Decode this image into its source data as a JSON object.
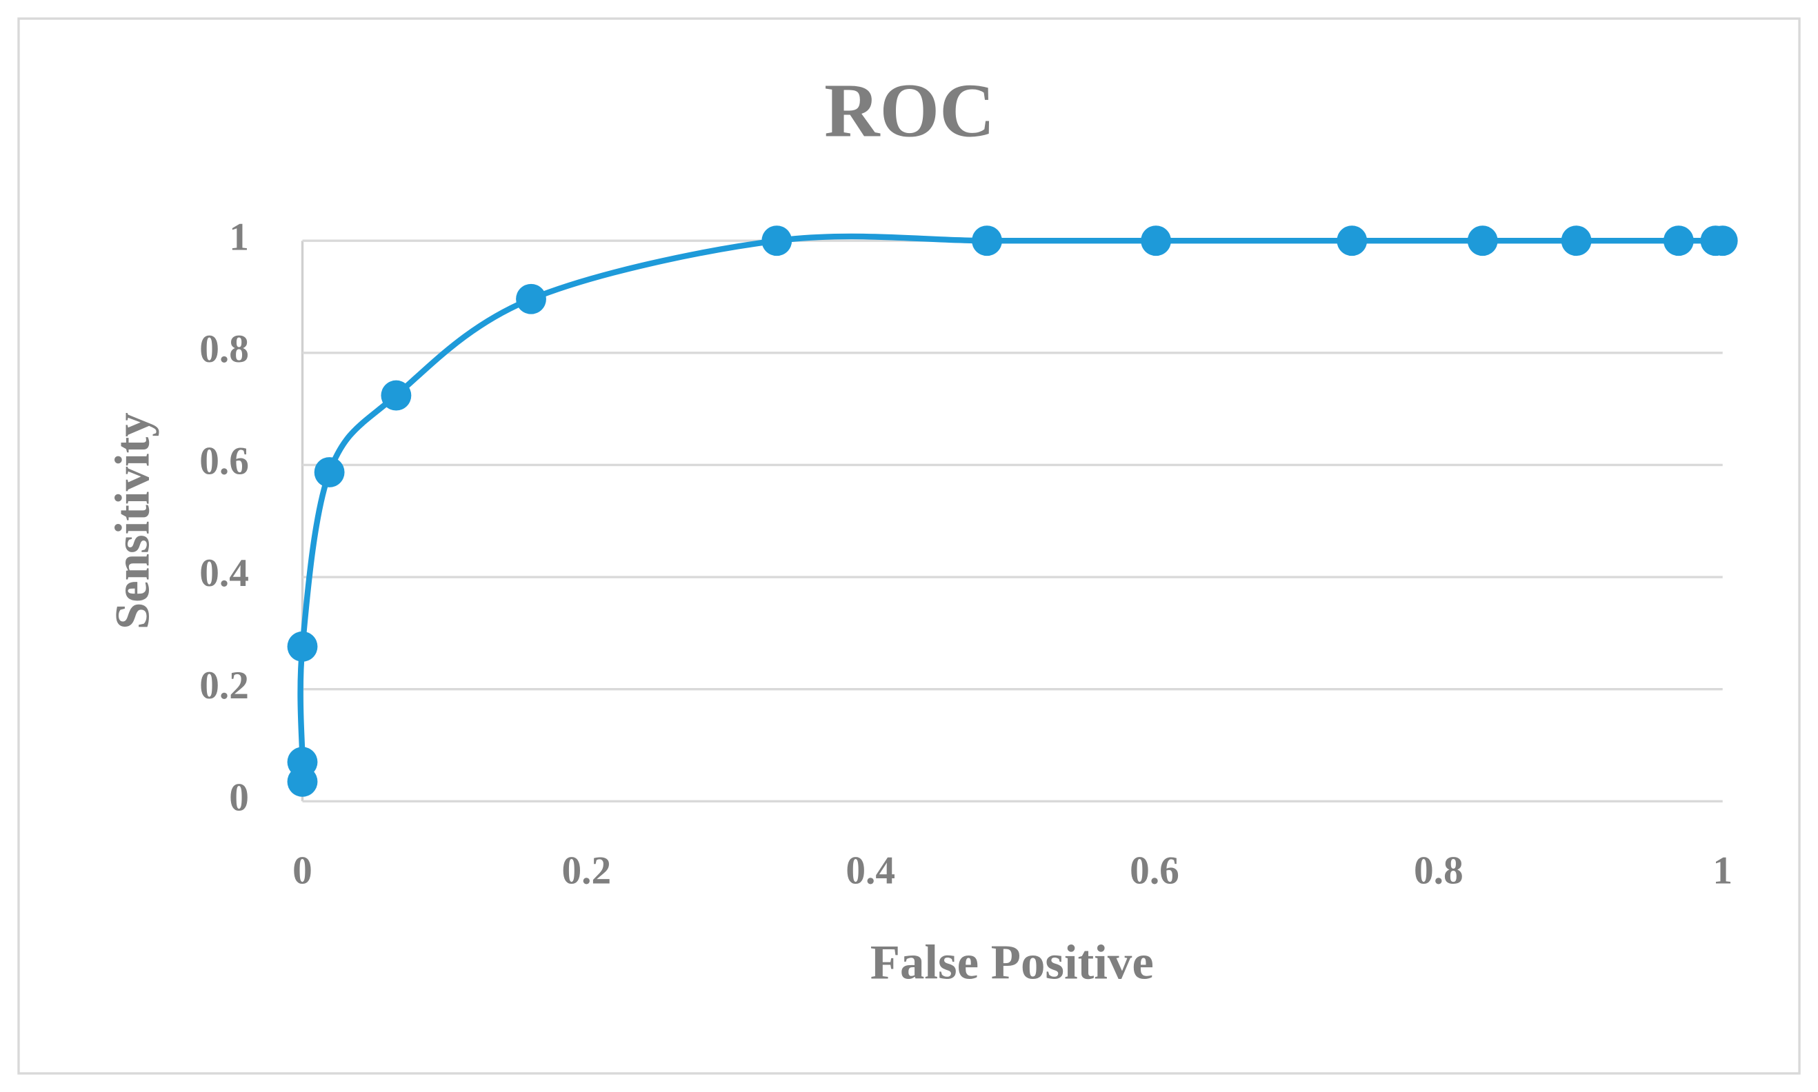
{
  "chart_data": {
    "type": "scatter",
    "title": "ROC",
    "x_label": "False Positive",
    "y_label": "Sensitivity",
    "x": [
      0,
      0,
      0,
      0.019,
      0.066,
      0.161,
      0.334,
      0.482,
      0.601,
      0.739,
      0.831,
      0.897,
      0.969,
      0.995,
      1
    ],
    "values": [
      0.035,
      0.07,
      0.276,
      0.587,
      0.724,
      0.896,
      1,
      1,
      1,
      1,
      1,
      1,
      1,
      1,
      1
    ],
    "color": "#1e9ad9",
    "smooth": true,
    "markers": true,
    "xlim": [
      0,
      1
    ],
    "xticks": [
      0,
      0.2,
      0.4,
      0.6,
      0.8,
      1
    ],
    "ylim": [
      0,
      1
    ],
    "yticks": [
      0,
      0.2,
      0.4,
      0.6,
      0.8,
      1
    ],
    "grid": true
  }
}
